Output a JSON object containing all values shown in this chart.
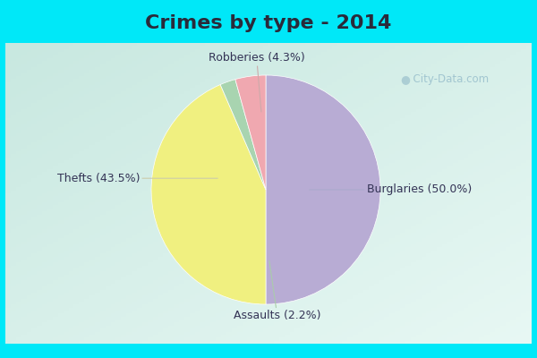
{
  "title": "Crimes by type - 2014",
  "slices": [
    {
      "label": "Burglaries",
      "pct": 50.0,
      "color": "#b8acd4"
    },
    {
      "label": "Thefts",
      "pct": 43.5,
      "color": "#f0f080"
    },
    {
      "label": "Assaults",
      "pct": 2.2,
      "color": "#a8d4b0"
    },
    {
      "label": "Robberies",
      "pct": 4.3,
      "color": "#f0a8b0"
    }
  ],
  "background_top": "#00e8f8",
  "background_main_tl": "#c8e8e0",
  "background_main_br": "#d8f0e8",
  "title_fontsize": 16,
  "label_fontsize": 9,
  "title_color": "#2a2a3a",
  "label_color": "#333355",
  "watermark": "City-Data.com"
}
